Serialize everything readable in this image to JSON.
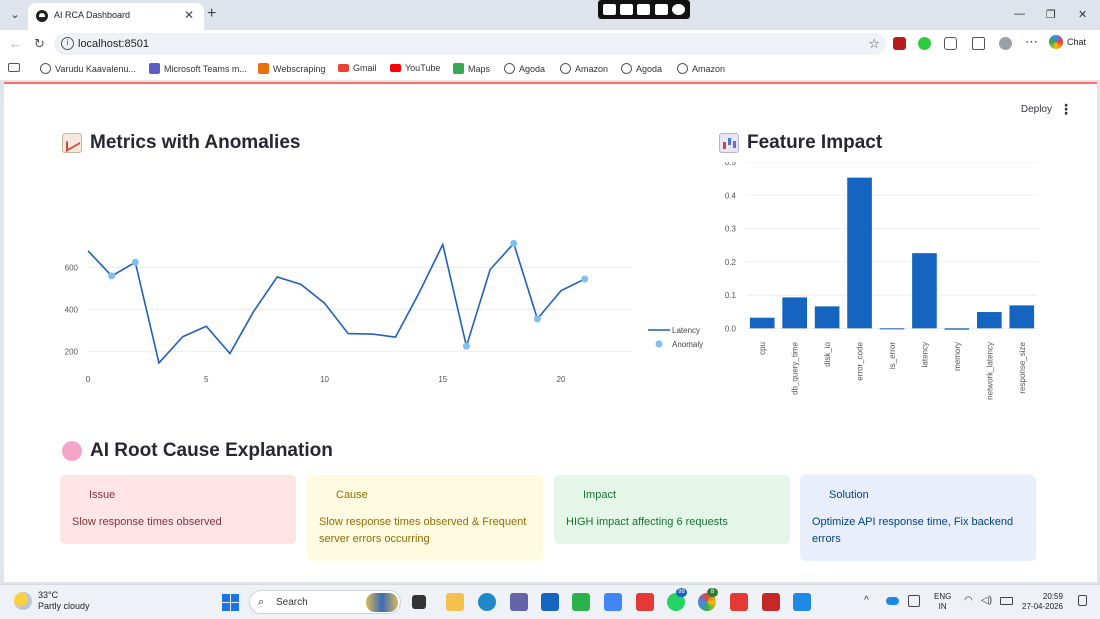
{
  "browser": {
    "tab_title": "AI RCA Dashboard",
    "url": "localhost:8501",
    "chat_label": "Chat",
    "bookmarks": [
      {
        "label": "Varudu Kaavalenu...",
        "color": "#555"
      },
      {
        "label": "Microsoft Teams m...",
        "color": "#5b5fc7"
      },
      {
        "label": "Webscraping",
        "color": "#e8710a"
      },
      {
        "label": "Gmail",
        "color": "#ea4335"
      },
      {
        "label": "YouTube",
        "color": "#ff0000"
      },
      {
        "label": "Maps",
        "color": "#34a853"
      },
      {
        "label": "Agoda",
        "color": "#555"
      },
      {
        "label": "Amazon",
        "color": "#555"
      },
      {
        "label": "Agoda",
        "color": "#555"
      },
      {
        "label": "Amazon",
        "color": "#555"
      }
    ]
  },
  "app": {
    "deploy_label": "Deploy",
    "metrics_heading": "Metrics with Anomalies",
    "feature_heading": "Feature Impact",
    "rca_heading": "AI Root Cause Explanation"
  },
  "cards": [
    {
      "title": "Issue",
      "text": "Slow response times observed",
      "dot": "#e0334f"
    },
    {
      "title": "Cause",
      "text": "Slow response times observed & Frequent server errors occurring",
      "dot": "#e6b32a"
    },
    {
      "title": "Impact",
      "text": "HIGH impact affecting 6 requests",
      "dot": "#3dbb6b"
    },
    {
      "title": "Solution",
      "text": "Optimize API response time, Fix backend errors",
      "dot": "#3366cc"
    }
  ],
  "chart_data": [
    {
      "type": "line",
      "title": "",
      "xlabel": "",
      "ylabel": "",
      "xlim": [
        0,
        23
      ],
      "ylim": [
        140,
        760
      ],
      "x_ticks": [
        0,
        5,
        10,
        15,
        20
      ],
      "y_ticks": [
        200,
        400,
        600
      ],
      "legend_position": "right",
      "grid": true,
      "series": [
        {
          "name": "Latency",
          "color": "#1f5fbf",
          "x": [
            0,
            1,
            2,
            3,
            4,
            5,
            6,
            7,
            8,
            9,
            10,
            11,
            12,
            13,
            14,
            15,
            16,
            17,
            18,
            19,
            20,
            21
          ],
          "y": [
            680,
            560,
            625,
            145,
            270,
            320,
            190,
            390,
            555,
            520,
            430,
            285,
            283,
            268,
            480,
            710,
            225,
            590,
            715,
            355,
            490,
            545
          ]
        },
        {
          "name": "Anomaly",
          "mode": "markers",
          "color": "#7fbff0",
          "x": [
            1,
            2,
            16,
            18,
            19,
            21
          ],
          "y": [
            560,
            625,
            225,
            715,
            355,
            545
          ]
        }
      ]
    },
    {
      "type": "bar",
      "title": "",
      "xlabel": "",
      "ylabel": "",
      "ylim": [
        -0.005,
        0.5
      ],
      "y_ticks": [
        0.0,
        0.1,
        0.2,
        0.3,
        0.4,
        0.5
      ],
      "y_tick_labels": [
        "0.0",
        "0.1",
        "0.2",
        "0.3",
        "0.4",
        "0.5"
      ],
      "grid": true,
      "color": "#1565c0",
      "categories": [
        "cpu",
        "db_query_time",
        "disk_io",
        "error_code",
        "is_error",
        "latency",
        "memory",
        "network_latency",
        "response_size"
      ],
      "values": [
        0.032,
        0.093,
        0.066,
        0.453,
        -0.002,
        0.226,
        -0.004,
        0.049,
        0.069
      ]
    }
  ],
  "taskbar": {
    "temperature": "33°C",
    "weather": "Partly cloudy",
    "search_label": "Search",
    "badge_whatsapp": "98",
    "badge_chrome": "8",
    "lang_top": "ENG",
    "lang_bottom": "IN",
    "time": "20:59",
    "date": "27-04-2026"
  }
}
